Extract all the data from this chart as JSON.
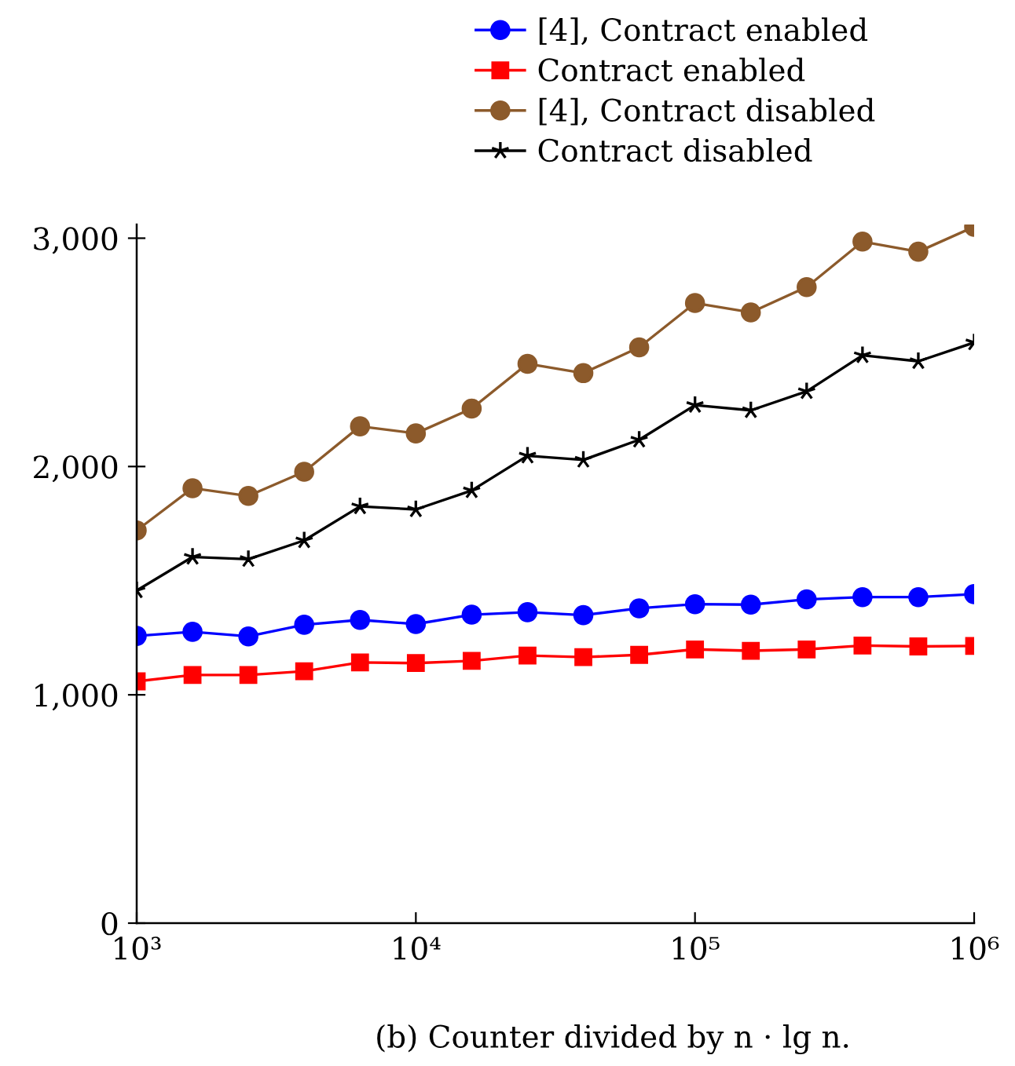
{
  "chart_data": {
    "type": "line",
    "log": "x",
    "x": [
      1000,
      1585,
      2512,
      3981,
      6310,
      10000,
      15849,
      25119,
      39811,
      63096,
      100000,
      158489,
      251189,
      398107,
      630957,
      1000000
    ],
    "series": [
      {
        "name": "[4], Contract enabled",
        "color": "#0000ff",
        "marker": "circle",
        "values": [
          1258,
          1276,
          1256,
          1307,
          1328,
          1310,
          1351,
          1362,
          1349,
          1379,
          1397,
          1395,
          1418,
          1428,
          1428,
          1441
        ]
      },
      {
        "name": "Contract enabled",
        "color": "#ff0000",
        "marker": "square",
        "values": [
          1059,
          1087,
          1087,
          1103,
          1142,
          1139,
          1149,
          1172,
          1165,
          1175,
          1199,
          1193,
          1199,
          1216,
          1212,
          1214
        ]
      },
      {
        "name": "[4], Contract disabled",
        "color": "#8c5a2b",
        "marker": "circle",
        "values": [
          1720,
          1905,
          1871,
          1977,
          2176,
          2145,
          2254,
          2450,
          2409,
          2522,
          2716,
          2675,
          2786,
          2985,
          2941,
          3050
        ]
      },
      {
        "name": "Contract disabled",
        "color": "#000000",
        "marker": "star",
        "values": [
          1457,
          1604,
          1594,
          1676,
          1825,
          1812,
          1895,
          2047,
          2029,
          2117,
          2269,
          2246,
          2329,
          2487,
          2461,
          2543
        ]
      }
    ],
    "xlim": [
      1000,
      1000000
    ],
    "xticks": [
      {
        "value": 1000,
        "label": "10³"
      },
      {
        "value": 10000,
        "label": "10⁴"
      },
      {
        "value": 100000,
        "label": "10⁵"
      },
      {
        "value": 1000000,
        "label": "10⁶"
      }
    ],
    "ylim": [
      0,
      3060
    ],
    "yticks": [
      0,
      {
        "value": 1000,
        "label": "1,000"
      },
      {
        "value": 2000,
        "label": "2,000"
      },
      {
        "value": 3000,
        "label": "3,000"
      }
    ],
    "legend": "top right",
    "annotations": [
      "(b) Counter divided by n · lg n."
    ]
  }
}
